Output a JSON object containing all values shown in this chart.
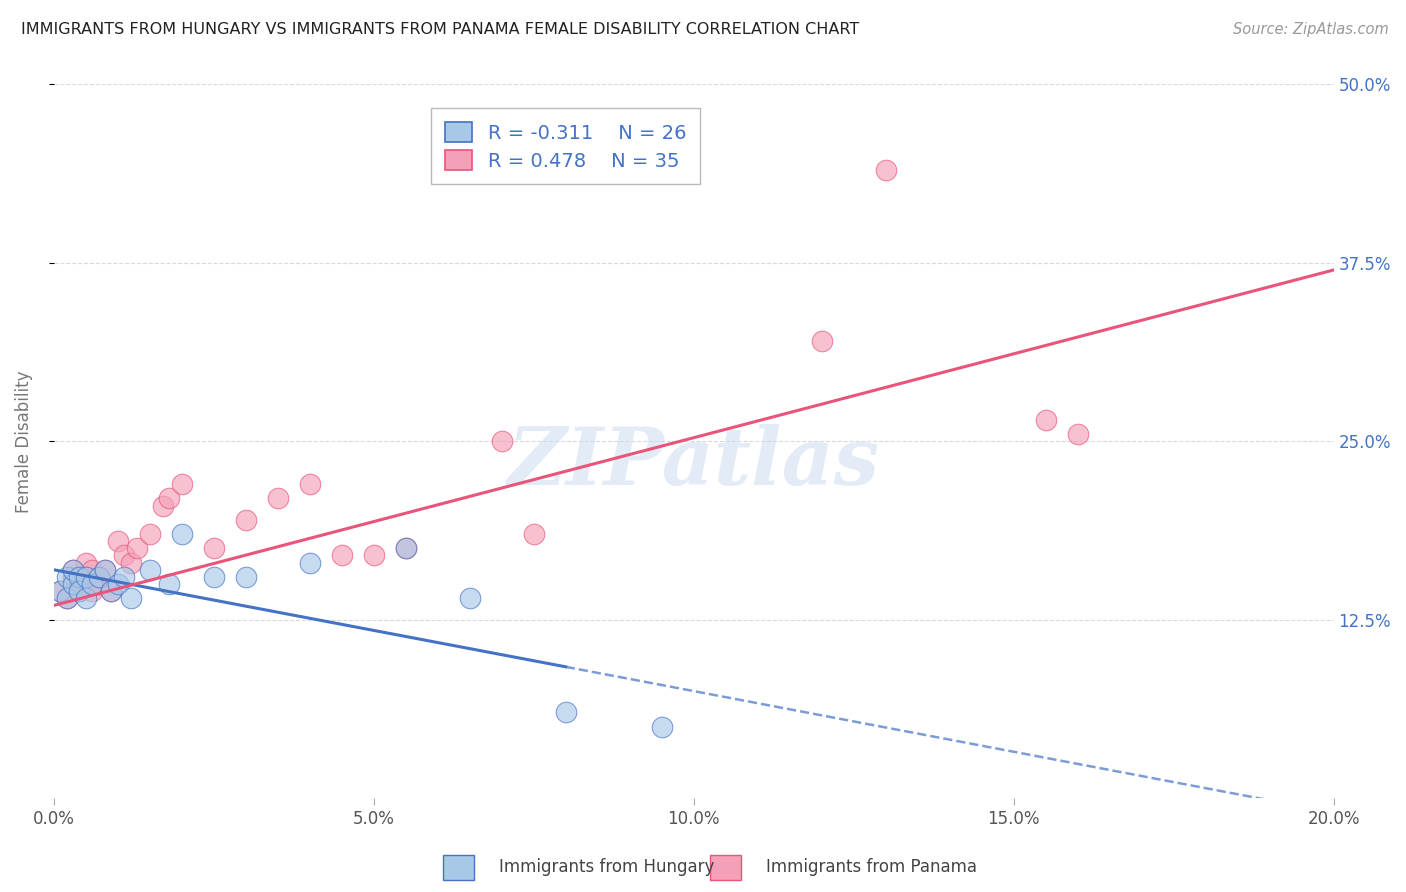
{
  "title": "IMMIGRANTS FROM HUNGARY VS IMMIGRANTS FROM PANAMA FEMALE DISABILITY CORRELATION CHART",
  "source": "Source: ZipAtlas.com",
  "ylabel": "Female Disability",
  "x_min": 0.0,
  "x_max": 0.2,
  "y_min": 0.0,
  "y_max": 0.5,
  "yticks": [
    0.125,
    0.25,
    0.375,
    0.5
  ],
  "ytick_labels": [
    "12.5%",
    "25.0%",
    "37.5%",
    "50.0%"
  ],
  "xticks": [
    0.0,
    0.05,
    0.1,
    0.15,
    0.2
  ],
  "xtick_labels": [
    "0.0%",
    "5.0%",
    "10.0%",
    "15.0%",
    "20.0%"
  ],
  "legend_labels": [
    "Immigrants from Hungary",
    "Immigrants from Panama"
  ],
  "R_hungary": -0.311,
  "N_hungary": 26,
  "R_panama": 0.478,
  "N_panama": 35,
  "color_hungary": "#a8c8e8",
  "color_panama": "#f4a0b8",
  "line_color_hungary": "#4472c4",
  "line_color_panama": "#e8547a",
  "hungary_x": [
    0.001,
    0.002,
    0.002,
    0.003,
    0.003,
    0.004,
    0.004,
    0.005,
    0.005,
    0.006,
    0.007,
    0.008,
    0.009,
    0.01,
    0.011,
    0.012,
    0.015,
    0.018,
    0.02,
    0.025,
    0.03,
    0.04,
    0.055,
    0.065,
    0.08,
    0.095
  ],
  "hungary_y": [
    0.145,
    0.155,
    0.14,
    0.15,
    0.16,
    0.155,
    0.145,
    0.155,
    0.14,
    0.15,
    0.155,
    0.16,
    0.145,
    0.15,
    0.155,
    0.14,
    0.16,
    0.15,
    0.185,
    0.155,
    0.155,
    0.165,
    0.175,
    0.14,
    0.06,
    0.05
  ],
  "panama_x": [
    0.001,
    0.002,
    0.003,
    0.003,
    0.004,
    0.004,
    0.005,
    0.005,
    0.006,
    0.006,
    0.007,
    0.007,
    0.008,
    0.009,
    0.01,
    0.011,
    0.012,
    0.013,
    0.015,
    0.017,
    0.018,
    0.02,
    0.025,
    0.03,
    0.035,
    0.04,
    0.045,
    0.05,
    0.055,
    0.07,
    0.075,
    0.12,
    0.13,
    0.155,
    0.16
  ],
  "panama_y": [
    0.145,
    0.14,
    0.155,
    0.16,
    0.15,
    0.145,
    0.155,
    0.165,
    0.16,
    0.145,
    0.15,
    0.155,
    0.16,
    0.145,
    0.18,
    0.17,
    0.165,
    0.175,
    0.185,
    0.205,
    0.21,
    0.22,
    0.175,
    0.195,
    0.21,
    0.22,
    0.17,
    0.17,
    0.175,
    0.25,
    0.185,
    0.32,
    0.44,
    0.265,
    0.255
  ],
  "watermark_text": "ZIPatlas",
  "background_color": "#ffffff",
  "grid_color": "#d0d0d0",
  "hungary_line_x_solid_end": 0.08,
  "panama_intercept": 0.135,
  "panama_slope": 1.175,
  "hungary_intercept": 0.16,
  "hungary_slope": -0.85
}
